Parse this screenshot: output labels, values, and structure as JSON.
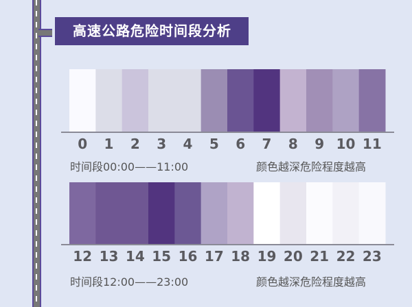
{
  "title": "高速公路危险时间段分析",
  "chart_data": [
    {
      "type": "heatmap",
      "caption": "时间段00:00——11:00",
      "legend_note": "颜色越深危险程度越高",
      "categories": [
        "0",
        "1",
        "2",
        "3",
        "4",
        "5",
        "6",
        "7",
        "8",
        "9",
        "10",
        "11"
      ],
      "colors": [
        "#fafaff",
        "#dcdde8",
        "#cbc4dc",
        "#dcdde8",
        "#dcdde8",
        "#9b8db3",
        "#6a5493",
        "#52347f",
        "#c3b3d0",
        "#a18fb6",
        "#aea2c4",
        "#8773a5"
      ]
    },
    {
      "type": "heatmap",
      "caption": "时间段12:00——23:00",
      "legend_note": "颜色越深危险程度越高",
      "categories": [
        "12",
        "13",
        "14",
        "15",
        "16",
        "17",
        "18",
        "19",
        "20",
        "21",
        "22",
        "23"
      ],
      "colors": [
        "#7e68a0",
        "#6f5793",
        "#6f5793",
        "#52347f",
        "#6c5894",
        "#afa3c6",
        "#c1b3d0",
        "#ffffff",
        "#e8e6ef",
        "#fbfbfe",
        "#f2f1f7",
        "#f9f9fd"
      ]
    }
  ]
}
